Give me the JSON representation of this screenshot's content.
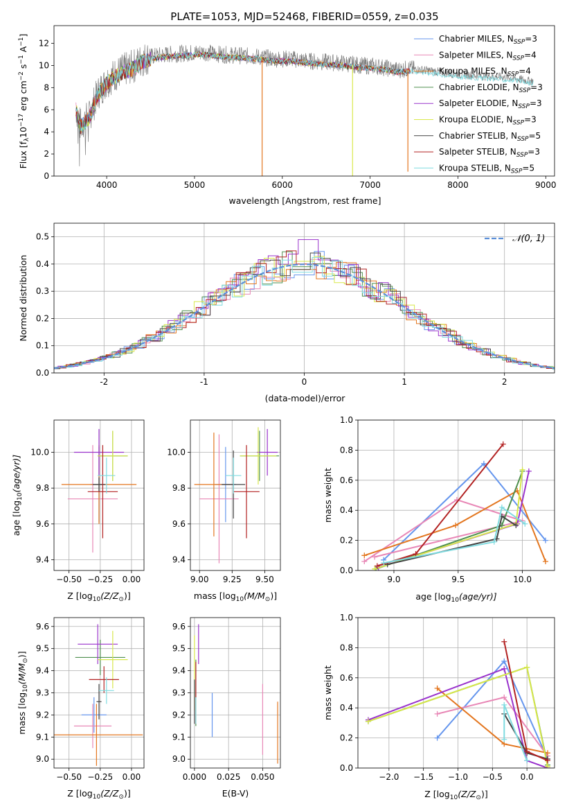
{
  "figure_title": "PLATE=1053, MJD=52468, FIBERID=0559, z=0.035",
  "legend": [
    {
      "text": "Chabrier MILES, N",
      "sub": "SSP",
      "tail": "=3",
      "color": "#6495ED"
    },
    {
      "text": "Salpeter MILES, N",
      "sub": "SSP",
      "tail": "=4",
      "color": "#E887B6"
    },
    {
      "text": "Kroupa MILES, N",
      "sub": "SSP",
      "tail": "=4",
      "color": "#E3761F"
    },
    {
      "text": "Chabrier ELODIE, N",
      "sub": "SSP",
      "tail": "=3",
      "color": "#4E8F4E"
    },
    {
      "text": "Salpeter ELODIE, N",
      "sub": "SSP",
      "tail": "=3",
      "color": "#9932CC"
    },
    {
      "text": "Kroupa ELODIE, N",
      "sub": "SSP",
      "tail": "=3",
      "color": "#D8E84A"
    },
    {
      "text": "Chabrier STELIB, N",
      "sub": "SSP",
      "tail": "=5",
      "color": "#444444"
    },
    {
      "text": "Salpeter STELIB, N",
      "sub": "SSP",
      "tail": "=3",
      "color": "#B22222"
    },
    {
      "text": "Kroupa STELIB, N",
      "sub": "SSP",
      "tail": "=5",
      "color": "#7FDBE0"
    }
  ],
  "colors": {
    "grid": "#b0b0b0",
    "spectrum_data": "#808080",
    "normal_curve": "#5B8FD9"
  },
  "chart_data": [
    {
      "id": "spectrum",
      "type": "line",
      "xlabel": "wavelength [Angstrom, rest frame]",
      "ylabel": "Flux [f",
      "ylabel_tail": "10",
      "ylabel_exp": "−17",
      "ylabel_units": " erg cm",
      "ylabel_exp2": "−2",
      "ylabel_mid": " s",
      "ylabel_exp3": "−1",
      "ylabel_end": " A",
      "ylabel_exp4": "−1",
      "ylabel_close": "]",
      "xlim": [
        3400,
        9100
      ],
      "ylim": [
        0,
        13.6
      ],
      "xticks": [
        4000,
        5000,
        6000,
        7000,
        8000,
        9000
      ],
      "yticks": [
        0,
        2,
        4,
        6,
        8,
        10,
        12
      ],
      "grid": false,
      "legend_position": "top-right",
      "continuum": {
        "x": [
          3650,
          3700,
          3800,
          3900,
          4000,
          4100,
          4200,
          4300,
          4400,
          4500,
          4700,
          4900,
          5100,
          5300,
          5500,
          5700,
          5900,
          6100,
          6300,
          6500,
          6700,
          6900,
          7100,
          7300,
          7450,
          7600,
          7800,
          8000,
          8200,
          8400,
          8600,
          8800
        ],
        "y": [
          6.2,
          4.6,
          5.4,
          7.5,
          8.6,
          9.2,
          9.6,
          9.9,
          10.5,
          10.8,
          11.0,
          11.1,
          11.2,
          11.0,
          10.9,
          10.8,
          10.6,
          10.6,
          10.4,
          10.3,
          10.2,
          10.0,
          9.9,
          9.6,
          9.7,
          9.6,
          9.4,
          9.2,
          9.1,
          9.0,
          8.9,
          8.6
        ]
      },
      "spikes": [
        {
          "x": 5770,
          "ymin": 0,
          "color": "#E3761F"
        },
        {
          "x": 6800,
          "ymin": 0,
          "color": "#D8E84A"
        },
        {
          "x": 7430,
          "ymin": 0.4,
          "color": "#E3761F"
        }
      ]
    },
    {
      "id": "residuals",
      "type": "bar",
      "xlabel": "(data-model)/error",
      "ylabel": "Normed distribution",
      "xlim": [
        -2.5,
        2.5
      ],
      "ylim": [
        0,
        0.55
      ],
      "xticks": [
        -2,
        -1,
        0,
        1,
        2
      ],
      "yticks": [
        0.0,
        0.1,
        0.2,
        0.3,
        0.4,
        0.5
      ],
      "grid": true,
      "legend": "𝒩(0, 1)",
      "legend_position": "top-right",
      "bin_width": 0.1,
      "series_peak": [
        0.36,
        0.4,
        0.38,
        0.39,
        0.37,
        0.41,
        0.38,
        0.4,
        0.37
      ]
    },
    {
      "id": "age_vs_Z",
      "type": "scatter",
      "xlabel": "Z [log",
      "xlabel_sub": "10",
      "xlabel_tail": "(Z/Z",
      "xlabel_sun": "⊙",
      "xlabel_close": ")]",
      "ylabel": "age  [log",
      "ylabel_sub": "10",
      "ylabel_tail": "(age/yr)]",
      "xlim": [
        -0.62,
        0.1
      ],
      "ylim": [
        9.34,
        10.18
      ],
      "xticks": [
        -0.5,
        -0.25,
        0.0
      ],
      "xticklabels": [
        "−0.50",
        "−0.25",
        "0.00"
      ],
      "yticks": [
        9.4,
        9.6,
        9.8,
        10.0
      ],
      "grid": true,
      "points": [
        {
          "x": -0.26,
          "y": 9.82,
          "xerr": 0.07,
          "yerr": 0.21,
          "s": 0
        },
        {
          "x": -0.31,
          "y": 9.74,
          "xerr": 0.2,
          "yerr": 0.3,
          "s": 1
        },
        {
          "x": -0.26,
          "y": 9.82,
          "xerr": 0.3,
          "yerr": 0.22,
          "s": 2
        },
        {
          "x": -0.15,
          "y": 9.98,
          "xerr": 0.12,
          "yerr": 0.14,
          "s": 3
        },
        {
          "x": -0.26,
          "y": 10.0,
          "xerr": 0.2,
          "yerr": 0.13,
          "s": 4
        },
        {
          "x": -0.15,
          "y": 9.98,
          "xerr": 0.12,
          "yerr": 0.14,
          "s": 5
        },
        {
          "x": -0.26,
          "y": 9.82,
          "xerr": 0.05,
          "yerr": 0.04,
          "s": 6
        },
        {
          "x": -0.23,
          "y": 9.78,
          "xerr": 0.12,
          "yerr": 0.26,
          "s": 7
        },
        {
          "x": -0.2,
          "y": 9.87,
          "xerr": 0.07,
          "yerr": 0.1,
          "s": 8
        }
      ]
    },
    {
      "id": "age_vs_mass",
      "type": "scatter",
      "xlabel": "mass [log",
      "xlabel_sub": "10",
      "xlabel_tail": "(M/M",
      "xlabel_sun": "⊙",
      "xlabel_close": ")]",
      "xlim": [
        8.93,
        9.62
      ],
      "ylim": [
        9.34,
        10.18
      ],
      "xticks": [
        9.0,
        9.25,
        9.5
      ],
      "xticklabels": [
        "9.00",
        "9.25",
        "9.50"
      ],
      "yticks": [
        9.4,
        9.6,
        9.8,
        10.0
      ],
      "grid": true,
      "points": [
        {
          "x": 9.2,
          "y": 9.82,
          "xerr": 0.08,
          "yerr": 0.21,
          "s": 0
        },
        {
          "x": 9.15,
          "y": 9.74,
          "xerr": 0.15,
          "yerr": 0.36,
          "s": 1
        },
        {
          "x": 9.11,
          "y": 9.82,
          "xerr": 0.15,
          "yerr": 0.29,
          "s": 2
        },
        {
          "x": 9.46,
          "y": 9.98,
          "xerr": 0.15,
          "yerr": 0.14,
          "s": 3
        },
        {
          "x": 9.52,
          "y": 10.0,
          "xerr": 0.08,
          "yerr": 0.13,
          "s": 4
        },
        {
          "x": 9.45,
          "y": 9.98,
          "xerr": 0.14,
          "yerr": 0.16,
          "s": 5
        },
        {
          "x": 9.26,
          "y": 9.82,
          "xerr": 0.09,
          "yerr": 0.19,
          "s": 6
        },
        {
          "x": 9.36,
          "y": 9.78,
          "xerr": 0.1,
          "yerr": 0.26,
          "s": 7
        },
        {
          "x": 9.26,
          "y": 9.87,
          "xerr": 0.06,
          "yerr": 0.1,
          "s": 8
        }
      ]
    },
    {
      "id": "weight_vs_age",
      "type": "line",
      "xlabel": "age  [log",
      "xlabel_sub": "10",
      "xlabel_tail": "(age/yr)]",
      "ylabel": "mass weight",
      "xlim": [
        8.72,
        10.25
      ],
      "ylim": [
        0.0,
        1.0
      ],
      "xticks": [
        9.0,
        9.5,
        10.0
      ],
      "yticks": [
        0.0,
        0.2,
        0.4,
        0.6,
        0.8,
        1.0
      ],
      "grid": true,
      "series": [
        {
          "s": 0,
          "x": [
            8.92,
            9.7,
            10.18
          ],
          "y": [
            0.07,
            0.71,
            0.2
          ]
        },
        {
          "s": 1,
          "x": [
            8.77,
            9.49,
            10.0,
            8.85
          ],
          "y": [
            0.06,
            0.47,
            0.33,
            0.09
          ]
        },
        {
          "s": 2,
          "x": [
            8.77,
            9.48,
            9.96,
            10.18
          ],
          "y": [
            0.1,
            0.3,
            0.53,
            0.06
          ]
        },
        {
          "s": 3,
          "x": [
            8.86,
            9.84,
            10.0
          ],
          "y": [
            0.01,
            0.3,
            0.66
          ]
        },
        {
          "s": 4,
          "x": [
            8.88,
            9.96,
            10.05
          ],
          "y": [
            0.02,
            0.31,
            0.66
          ]
        },
        {
          "s": 5,
          "x": [
            8.85,
            9.95,
            10.0
          ],
          "y": [
            0.01,
            0.31,
            0.67
          ]
        },
        {
          "s": 6,
          "x": [
            8.95,
            9.8,
            9.84,
            9.95
          ],
          "y": [
            0.04,
            0.21,
            0.36,
            0.3
          ]
        },
        {
          "s": 7,
          "x": [
            8.87,
            9.17,
            9.85
          ],
          "y": [
            0.03,
            0.11,
            0.84
          ]
        },
        {
          "s": 8,
          "x": [
            8.92,
            9.78,
            9.84,
            10.02
          ],
          "y": [
            0.05,
            0.19,
            0.42,
            0.31
          ]
        }
      ]
    },
    {
      "id": "mass_vs_Z",
      "type": "scatter",
      "xlabel": "Z [log",
      "xlabel_sub": "10",
      "xlabel_tail": "(Z/Z",
      "xlabel_sun": "⊙",
      "xlabel_close": ")]",
      "ylabel": "mass [log",
      "ylabel_sub": "10",
      "ylabel_tail": "(M/M",
      "ylabel_sun": "⊙",
      "ylabel_close": ")]",
      "xlim": [
        -0.62,
        0.1
      ],
      "ylim": [
        8.96,
        9.64
      ],
      "xticks": [
        -0.5,
        -0.25,
        0.0
      ],
      "xticklabels": [
        "−0.50",
        "−0.25",
        "0.00"
      ],
      "yticks": [
        9.0,
        9.1,
        9.2,
        9.3,
        9.4,
        9.5,
        9.6
      ],
      "grid": true,
      "points": [
        {
          "x": -0.3,
          "y": 9.2,
          "xerr": 0.1,
          "yerr": 0.08,
          "s": 0
        },
        {
          "x": -0.31,
          "y": 9.15,
          "xerr": 0.15,
          "yerr": 0.1,
          "s": 1
        },
        {
          "x": -0.28,
          "y": 9.11,
          "xerr": 0.37,
          "yerr": 0.14,
          "s": 2
        },
        {
          "x": -0.25,
          "y": 9.46,
          "xerr": 0.2,
          "yerr": 0.08,
          "s": 3
        },
        {
          "x": -0.27,
          "y": 9.52,
          "xerr": 0.16,
          "yerr": 0.09,
          "s": 4
        },
        {
          "x": -0.15,
          "y": 9.45,
          "xerr": 0.12,
          "yerr": 0.13,
          "s": 5
        },
        {
          "x": -0.26,
          "y": 9.26,
          "xerr": 0.02,
          "yerr": 0.08,
          "s": 6
        },
        {
          "x": -0.22,
          "y": 9.36,
          "xerr": 0.12,
          "yerr": 0.06,
          "s": 7
        },
        {
          "x": -0.2,
          "y": 9.31,
          "xerr": 0.06,
          "yerr": 0.06,
          "s": 8
        }
      ]
    },
    {
      "id": "mass_vs_ebv",
      "type": "scatter",
      "xlabel": "E(B-V)",
      "xlim": [
        -0.003,
        0.063
      ],
      "ylim": [
        8.96,
        9.64
      ],
      "xticks": [
        0.0,
        0.025,
        0.05
      ],
      "xticklabels": [
        "0.000",
        "0.025",
        "0.050"
      ],
      "yticks": [
        9.0,
        9.1,
        9.2,
        9.3,
        9.4,
        9.5,
        9.6
      ],
      "grid": true,
      "points": [
        {
          "x": 0.013,
          "y": 9.2,
          "yerr": 0.1,
          "s": 0
        },
        {
          "x": 0.05,
          "y": 9.18,
          "yerr": 0.16,
          "s": 1
        },
        {
          "x": 0.061,
          "y": 9.12,
          "yerr": 0.14,
          "s": 2
        },
        {
          "x": 0.001,
          "y": 9.3,
          "yerr": 0.15,
          "s": 3
        },
        {
          "x": 0.003,
          "y": 9.52,
          "yerr": 0.09,
          "s": 4
        },
        {
          "x": 0.0,
          "y": 9.39,
          "yerr": 0.17,
          "s": 5
        },
        {
          "x": 0.0,
          "y": 9.26,
          "yerr": 0.1,
          "s": 6
        },
        {
          "x": 0.001,
          "y": 9.3,
          "yerr": 0.14,
          "s": 7
        },
        {
          "x": 0.001,
          "y": 9.22,
          "yerr": 0.06,
          "s": 8
        }
      ]
    },
    {
      "id": "weight_vs_Z",
      "type": "line",
      "xlabel": "Z [log",
      "xlabel_sub": "10",
      "xlabel_tail": "(Z/Z",
      "xlabel_sun": "⊙",
      "xlabel_close": ")]",
      "ylabel": "mass weight",
      "xlim": [
        -2.45,
        0.4
      ],
      "ylim": [
        0.0,
        1.0
      ],
      "xticks": [
        -2.0,
        -1.5,
        -1.0,
        -0.5,
        0.0
      ],
      "xticklabels": [
        "−2.0",
        "−1.5",
        "−1.0",
        "−0.5",
        "0.0"
      ],
      "yticks": [
        0.0,
        0.2,
        0.4,
        0.6,
        0.8,
        1.0
      ],
      "grid": true,
      "series": [
        {
          "s": 0,
          "x": [
            -1.3,
            -0.33,
            0.3
          ],
          "y": [
            0.2,
            0.71,
            0.06
          ]
        },
        {
          "s": 1,
          "x": [
            -1.3,
            -0.33,
            0.3
          ],
          "y": [
            0.36,
            0.47,
            0.08
          ]
        },
        {
          "s": 2,
          "x": [
            -1.3,
            -0.33,
            0.3
          ],
          "y": [
            0.53,
            0.16,
            0.1
          ]
        },
        {
          "s": 3,
          "x": [
            -2.3,
            0.0,
            0.3
          ],
          "y": [
            0.31,
            0.67,
            0.02
          ]
        },
        {
          "s": 4,
          "x": [
            -2.3,
            -0.33,
            0.0,
            0.3
          ],
          "y": [
            0.32,
            0.66,
            0.05,
            0.0
          ]
        },
        {
          "s": 5,
          "x": [
            -2.3,
            0.0,
            0.3
          ],
          "y": [
            0.31,
            0.67,
            0.01
          ]
        },
        {
          "s": 6,
          "x": [
            -0.33,
            0.0,
            0.3
          ],
          "y": [
            0.36,
            0.1,
            0.06
          ]
        },
        {
          "s": 7,
          "x": [
            -0.33,
            0.0,
            0.3
          ],
          "y": [
            0.84,
            0.11,
            0.05
          ]
        },
        {
          "s": 8,
          "x": [
            -0.33,
            -0.33,
            0.0
          ],
          "y": [
            0.19,
            0.42,
            0.05
          ]
        }
      ]
    }
  ]
}
